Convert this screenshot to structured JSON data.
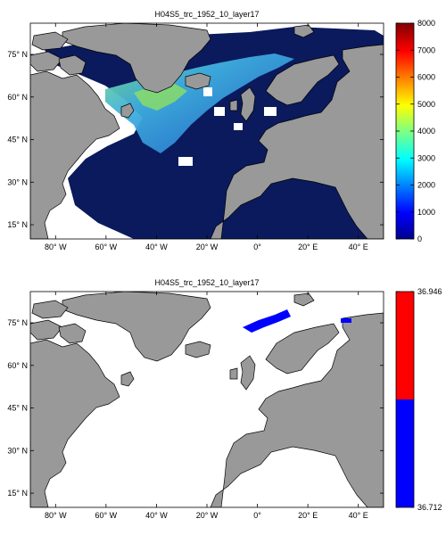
{
  "chart_data": [
    {
      "type": "heatmap",
      "title": "H04S5_trc_1952_10_layer17",
      "x_ticks": [
        "80° W",
        "60° W",
        "40° W",
        "20° W",
        "0°",
        "20° E",
        "40° E"
      ],
      "y_ticks": [
        "15° N",
        "30° N",
        "45° N",
        "60° N",
        "75° N"
      ],
      "xlim": [
        -90,
        50
      ],
      "ylim": [
        10,
        86
      ],
      "colorbar": {
        "ticks": [
          0,
          1000,
          2000,
          3000,
          4000,
          5000,
          6000,
          7000,
          8000
        ],
        "range": [
          0,
          8000
        ],
        "colormap": "jet"
      },
      "colors": {
        "land": "#999999",
        "ocean": "#0a1a5c",
        "missing": "#ffffff"
      }
    },
    {
      "type": "heatmap",
      "title": "H04S5_trc_1952_10_layer17",
      "x_ticks": [
        "80° W",
        "60° W",
        "40° W",
        "20° W",
        "0°",
        "20° E",
        "40° E"
      ],
      "y_ticks": [
        "15° N",
        "30° N",
        "45° N",
        "60° N",
        "75° N"
      ],
      "xlim": [
        -90,
        50
      ],
      "ylim": [
        10,
        86
      ],
      "colorbar": {
        "ticks": [
          "36.712",
          "36.946"
        ],
        "range": [
          36.712,
          36.946
        ],
        "colors": [
          "#0000ff",
          "#ff0000"
        ]
      },
      "colors": {
        "land": "#999999",
        "ocean": "#ffffff",
        "highlight": "#0000ff"
      }
    }
  ]
}
